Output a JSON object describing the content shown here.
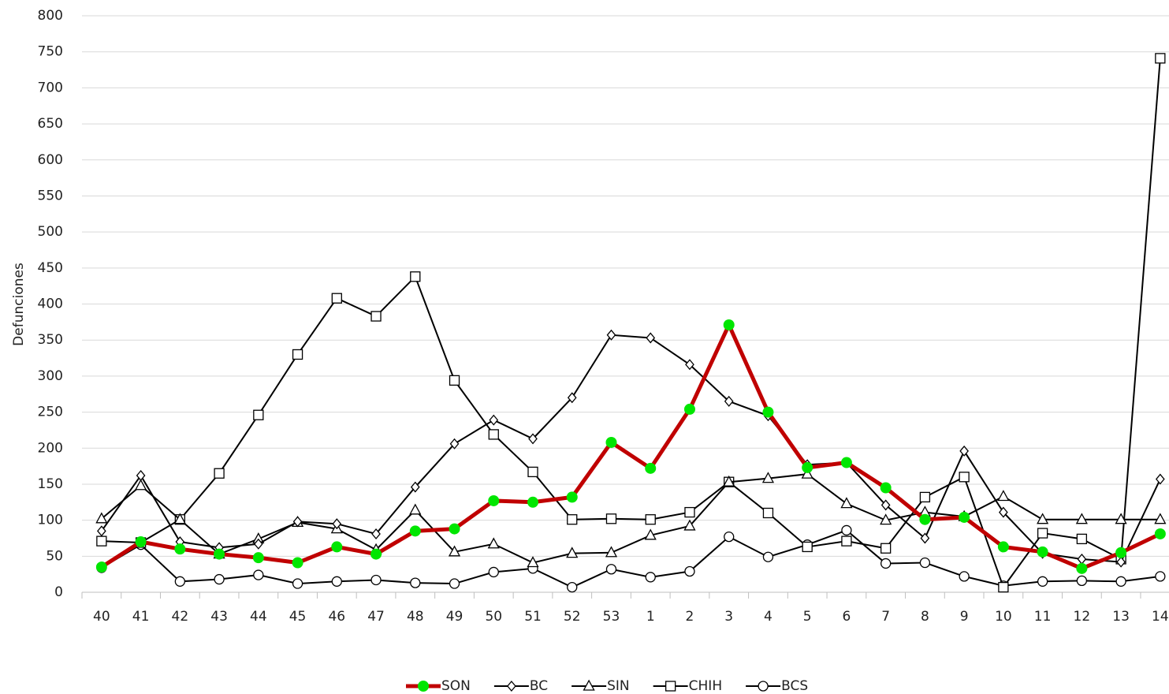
{
  "chart_data": {
    "type": "line",
    "y_label": "Defunciones",
    "categories": [
      "40",
      "41",
      "42",
      "43",
      "44",
      "45",
      "46",
      "47",
      "48",
      "49",
      "50",
      "51",
      "52",
      "53",
      "1",
      "2",
      "3",
      "4",
      "5",
      "6",
      "7",
      "8",
      "9",
      "10",
      "11",
      "12",
      "13",
      "14"
    ],
    "ylim": [
      0,
      800
    ],
    "yticks": [
      0,
      50,
      100,
      150,
      200,
      250,
      300,
      350,
      400,
      450,
      500,
      550,
      600,
      650,
      700,
      750,
      800
    ],
    "grid": true,
    "series": [
      {
        "name": "SON",
        "color": "#c00000",
        "marker": "circle",
        "marker_color": "#00e600",
        "values": [
          35,
          70,
          60,
          53,
          48,
          41,
          63,
          53,
          85,
          88,
          127,
          125,
          132,
          208,
          172,
          254,
          371,
          250,
          173,
          180,
          145,
          101,
          104,
          63,
          56,
          33,
          55,
          81
        ]
      },
      {
        "name": "BC",
        "color": "#000000",
        "marker": "diamond",
        "marker_color": "#ffffff",
        "values": [
          85,
          162,
          70,
          62,
          67,
          98,
          95,
          81,
          146,
          206,
          239,
          213,
          270,
          357,
          353,
          316,
          265,
          245,
          177,
          180,
          121,
          75,
          196,
          111,
          54,
          46,
          42,
          157
        ]
      },
      {
        "name": "SIN",
        "color": "#000000",
        "marker": "triangle",
        "marker_color": "#ffffff",
        "values": [
          102,
          148,
          101,
          53,
          74,
          97,
          88,
          59,
          114,
          56,
          67,
          41,
          54,
          55,
          79,
          92,
          153,
          158,
          164,
          123,
          100,
          111,
          105,
          133,
          101,
          101,
          101,
          101
        ]
      },
      {
        "name": "CHIH",
        "color": "#000000",
        "marker": "square",
        "marker_color": "#ffffff",
        "values": [
          71,
          69,
          101,
          165,
          246,
          330,
          408,
          383,
          438,
          294,
          219,
          167,
          101,
          102,
          101,
          111,
          153,
          110,
          63,
          71,
          61,
          132,
          160,
          7,
          82,
          74,
          46,
          741
        ]
      },
      {
        "name": "BCS",
        "color": "#000000",
        "marker": "circle",
        "marker_color": "#ffffff",
        "values": [
          34,
          66,
          15,
          18,
          24,
          12,
          15,
          17,
          13,
          12,
          28,
          33,
          7,
          32,
          21,
          29,
          77,
          49,
          66,
          86,
          40,
          41,
          22,
          9,
          15,
          16,
          15,
          22
        ]
      }
    ]
  }
}
